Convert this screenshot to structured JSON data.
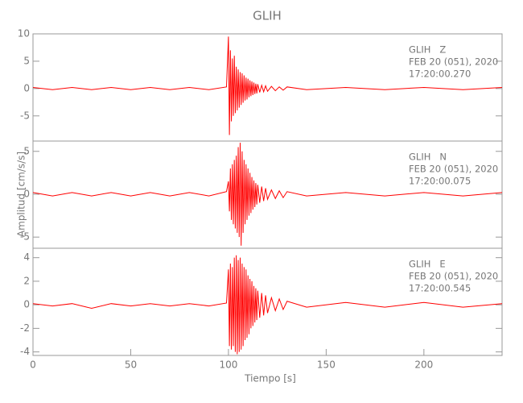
{
  "chart_data": [
    {
      "type": "line",
      "title": "GLIH",
      "annotations": [
        "GLIH   Z",
        "FEB 20 (051), 2020",
        "17:20:00.270"
      ],
      "xlim": [
        0,
        240
      ],
      "ylim": [
        -9.6,
        10
      ],
      "yticks": [
        -5,
        0,
        5,
        10
      ],
      "x": [
        0,
        10,
        20,
        30,
        40,
        50,
        60,
        70,
        80,
        90,
        99,
        100,
        100.5,
        101,
        101.5,
        102,
        102.5,
        103,
        103.5,
        104,
        104.5,
        105,
        105.5,
        106,
        106.5,
        107,
        107.5,
        108,
        108.5,
        109,
        109.5,
        110,
        110.5,
        111,
        111.5,
        112,
        112.5,
        113,
        113.5,
        114,
        114.5,
        115,
        116,
        117,
        118,
        119,
        120,
        122,
        124,
        126,
        128,
        130,
        140,
        160,
        180,
        200,
        220,
        240
      ],
      "series": [
        {
          "color": "#ff0000",
          "values": [
            0.2,
            -0.2,
            0.2,
            -0.2,
            0.2,
            -0.2,
            0.2,
            -0.2,
            0.2,
            -0.2,
            0.3,
            9.5,
            -8.5,
            7,
            -6,
            5.5,
            -5,
            6,
            -4.5,
            4,
            -4,
            3.5,
            -3.5,
            3,
            -3,
            2.8,
            -2.6,
            2.4,
            -2.2,
            2,
            -2,
            1.8,
            -1.6,
            1.5,
            -1.4,
            1.3,
            -1.2,
            1.1,
            -1,
            0.9,
            -0.9,
            0.8,
            -0.7,
            0.6,
            -0.6,
            0.5,
            -0.5,
            0.4,
            -0.4,
            0.3,
            -0.3,
            0.3,
            -0.2,
            0.2,
            -0.2,
            0.2,
            -0.2,
            0.2
          ]
        }
      ]
    },
    {
      "type": "line",
      "ylabel": "Amplitud [cm/s/s]",
      "annotations": [
        "GLIH   N",
        "FEB 20 (051), 2020",
        "17:20:00.075"
      ],
      "xlim": [
        0,
        240
      ],
      "ylim": [
        -6.3,
        6.2
      ],
      "yticks": [
        -5,
        0,
        5
      ],
      "x": [
        0,
        10,
        20,
        30,
        40,
        50,
        60,
        70,
        80,
        90,
        99,
        100,
        100.5,
        101,
        101.5,
        102,
        102.5,
        103,
        103.5,
        104,
        104.5,
        105,
        105.5,
        106,
        106.5,
        107,
        107.5,
        108,
        108.5,
        109,
        109.5,
        110,
        110.5,
        111,
        111.5,
        112,
        112.5,
        113,
        113.5,
        114,
        114.5,
        115,
        116,
        117,
        118,
        119,
        120,
        122,
        124,
        126,
        128,
        130,
        140,
        160,
        180,
        200,
        220,
        240
      ],
      "series": [
        {
          "color": "#ff0000",
          "values": [
            0.2,
            -0.2,
            0.2,
            -0.2,
            0.2,
            -0.2,
            0.2,
            -0.2,
            0.2,
            -0.2,
            0.3,
            1.5,
            -2,
            3,
            -3,
            3.5,
            -3.5,
            4,
            -4,
            4.5,
            -4.5,
            5.5,
            -5,
            6,
            -6,
            5,
            -4.5,
            4,
            -3.5,
            3.5,
            -3,
            3,
            -2.5,
            2.5,
            -2.2,
            2,
            -1.8,
            1.6,
            -1.5,
            1.3,
            -1.2,
            1.1,
            -1,
            0.9,
            -0.8,
            0.7,
            -0.6,
            0.5,
            -0.5,
            0.4,
            -0.4,
            0.3,
            -0.2,
            0.2,
            -0.2,
            0.2,
            -0.2,
            0.2
          ]
        }
      ]
    },
    {
      "type": "line",
      "xlabel": "Tiempo [s]",
      "annotations": [
        "GLIH   E",
        "FEB 20 (051), 2020",
        "17:20:00.545"
      ],
      "xlim": [
        0,
        240
      ],
      "xticks": [
        0,
        50,
        100,
        150,
        200
      ],
      "ylim": [
        -4.3,
        4.8
      ],
      "yticks": [
        -4,
        -2,
        0,
        2,
        4
      ],
      "x": [
        0,
        10,
        20,
        30,
        40,
        50,
        60,
        70,
        80,
        90,
        99,
        100,
        100.5,
        101,
        101.5,
        102,
        102.5,
        103,
        103.5,
        104,
        104.5,
        105,
        105.5,
        106,
        106.5,
        107,
        107.5,
        108,
        108.5,
        109,
        109.5,
        110,
        110.5,
        111,
        111.5,
        112,
        112.5,
        113,
        113.5,
        114,
        114.5,
        115,
        116,
        117,
        118,
        119,
        120,
        122,
        124,
        126,
        128,
        130,
        140,
        160,
        180,
        200,
        220,
        240
      ],
      "series": [
        {
          "color": "#ff0000",
          "values": [
            0.1,
            -0.1,
            0.1,
            -0.3,
            0.1,
            -0.1,
            0.1,
            -0.1,
            0.1,
            -0.1,
            0.15,
            3,
            -3.5,
            3.5,
            -3.8,
            3.2,
            -3.5,
            4,
            -4,
            4.2,
            -4.2,
            3.8,
            -4,
            4,
            -3.8,
            3.5,
            -3.5,
            3.2,
            -3,
            3,
            -2.8,
            2.5,
            -2.5,
            2.2,
            -2,
            2,
            -1.8,
            1.6,
            -1.5,
            1.4,
            -1.3,
            1.2,
            -1.1,
            1,
            -0.9,
            0.8,
            -0.7,
            0.6,
            -0.5,
            0.5,
            -0.4,
            0.3,
            -0.2,
            0.2,
            -0.2,
            0.2,
            -0.2,
            0.1
          ]
        }
      ]
    }
  ]
}
